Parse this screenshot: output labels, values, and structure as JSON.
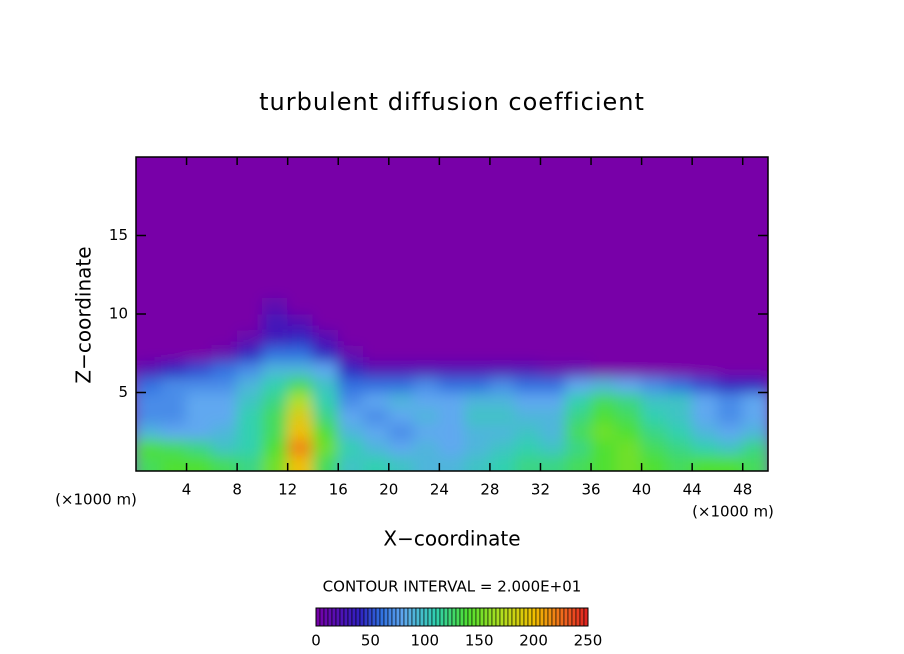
{
  "chart_data": {
    "type": "contour",
    "title": "turbulent diffusion coefficient",
    "x_label": "X−coordinate",
    "y_label": "Z−coordinate",
    "x_unit_left": "(×1000 m)",
    "x_unit_right": "(×1000 m)",
    "contour_note": "CONTOUR INTERVAL = 2.000E+01",
    "xlim": [
      0,
      50
    ],
    "ylim": [
      0,
      20
    ],
    "xticks": [
      4,
      8,
      12,
      16,
      20,
      24,
      28,
      32,
      36,
      40,
      44,
      48
    ],
    "yticks": [
      5,
      10,
      15
    ],
    "x": [
      1,
      3,
      5,
      7,
      9,
      11,
      13,
      15,
      17,
      19,
      21,
      23,
      25,
      27,
      29,
      31,
      33,
      35,
      37,
      39,
      41,
      43,
      45,
      47,
      49
    ],
    "z": [
      0.5,
      1.5,
      2.5,
      3.5,
      4.5,
      5.5,
      6.5,
      7.5,
      8.5,
      9.5,
      10.5
    ],
    "values": [
      [
        130,
        140,
        140,
        130,
        120,
        150,
        200,
        130,
        100,
        110,
        100,
        90,
        90,
        100,
        110,
        120,
        120,
        130,
        140,
        150,
        140,
        130,
        140,
        140,
        130
      ],
      [
        140,
        130,
        120,
        100,
        110,
        140,
        220,
        150,
        110,
        90,
        80,
        90,
        80,
        90,
        100,
        110,
        100,
        120,
        140,
        150,
        130,
        120,
        110,
        100,
        120
      ],
      [
        90,
        80,
        80,
        90,
        110,
        130,
        200,
        140,
        90,
        80,
        70,
        80,
        80,
        90,
        90,
        100,
        90,
        130,
        150,
        140,
        120,
        110,
        90,
        80,
        90
      ],
      [
        70,
        70,
        80,
        80,
        110,
        130,
        190,
        120,
        80,
        70,
        80,
        90,
        80,
        100,
        100,
        90,
        90,
        120,
        140,
        130,
        110,
        100,
        80,
        70,
        80
      ],
      [
        70,
        70,
        80,
        80,
        100,
        120,
        170,
        110,
        70,
        80,
        90,
        80,
        80,
        90,
        90,
        80,
        80,
        110,
        130,
        120,
        100,
        100,
        80,
        70,
        80
      ],
      [
        60,
        70,
        70,
        70,
        90,
        110,
        130,
        100,
        60,
        60,
        60,
        70,
        60,
        60,
        70,
        60,
        60,
        80,
        90,
        80,
        70,
        60,
        50,
        40,
        40
      ],
      [
        20,
        40,
        50,
        60,
        70,
        90,
        90,
        80,
        40,
        20,
        20,
        20,
        20,
        20,
        20,
        20,
        10,
        10,
        0,
        0,
        0,
        0,
        0,
        0,
        0
      ],
      [
        0,
        0,
        0,
        10,
        40,
        60,
        60,
        40,
        10,
        0,
        0,
        0,
        0,
        0,
        0,
        0,
        0,
        0,
        0,
        0,
        0,
        0,
        0,
        0,
        0
      ],
      [
        0,
        0,
        0,
        0,
        10,
        30,
        40,
        20,
        0,
        0,
        0,
        0,
        0,
        0,
        0,
        0,
        0,
        0,
        0,
        0,
        0,
        0,
        0,
        0,
        0
      ],
      [
        0,
        0,
        0,
        0,
        0,
        30,
        20,
        0,
        0,
        0,
        0,
        0,
        0,
        0,
        0,
        0,
        0,
        0,
        0,
        0,
        0,
        0,
        0,
        0,
        0
      ],
      [
        0,
        0,
        0,
        0,
        0,
        15,
        0,
        0,
        0,
        0,
        0,
        0,
        0,
        0,
        0,
        0,
        0,
        0,
        0,
        0,
        0,
        0,
        0,
        0,
        0
      ]
    ],
    "colormap": [
      [
        0,
        "#7800a8"
      ],
      [
        40,
        "#3020c0"
      ],
      [
        60,
        "#3070e0"
      ],
      [
        80,
        "#60a8f0"
      ],
      [
        110,
        "#30d0b0"
      ],
      [
        140,
        "#50e030"
      ],
      [
        170,
        "#b0e020"
      ],
      [
        200,
        "#f0c000"
      ],
      [
        230,
        "#f06020"
      ],
      [
        250,
        "#e02020"
      ]
    ],
    "cbar_lim": [
      0,
      250
    ],
    "cbar_ticks": [
      0,
      50,
      100,
      150,
      200,
      250
    ]
  }
}
